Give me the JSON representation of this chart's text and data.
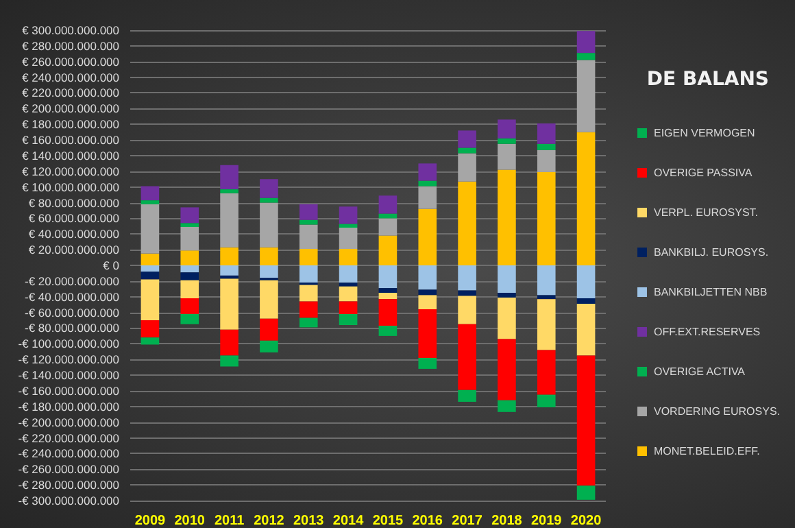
{
  "chart_data": {
    "type": "bar",
    "title": "DE BALANS",
    "stacked": true,
    "grid": "y",
    "legend": "right",
    "categories": [
      "2009",
      "2010",
      "2011",
      "2012",
      "2013",
      "2014",
      "2015",
      "2016",
      "2017",
      "2018",
      "2019",
      "2020"
    ],
    "series": [
      {
        "name": "MONET.BELEID.EFF.",
        "color": "#ffc000",
        "values": [
          15000000000,
          19000000000,
          23000000000,
          23000000000,
          21000000000,
          21000000000,
          38000000000,
          72000000000,
          107000000000,
          122000000000,
          119000000000,
          170000000000
        ]
      },
      {
        "name": "VORDERING EUROSYS.",
        "color": "#a6a6a6",
        "values": [
          63000000000,
          30000000000,
          69000000000,
          57000000000,
          31000000000,
          27000000000,
          22000000000,
          29000000000,
          36000000000,
          33000000000,
          28000000000,
          92000000000
        ]
      },
      {
        "name": "OVERIGE ACTIVA",
        "color": "#00b050",
        "values": [
          5000000000,
          5000000000,
          5000000000,
          6000000000,
          6000000000,
          5000000000,
          6000000000,
          7000000000,
          7000000000,
          7000000000,
          8000000000,
          9000000000
        ]
      },
      {
        "name": "OFF.EXT.RESERVES",
        "color": "#7030a0",
        "values": [
          18000000000,
          20000000000,
          31000000000,
          24000000000,
          20000000000,
          22000000000,
          23000000000,
          22000000000,
          22000000000,
          24000000000,
          26000000000,
          28000000000
        ]
      },
      {
        "name": "BANKBILJETTEN NBB",
        "color": "#9dc3e6",
        "values": [
          -8000000000,
          -9000000000,
          -13000000000,
          -16000000000,
          -22000000000,
          -22000000000,
          -29000000000,
          -31000000000,
          -32000000000,
          -35000000000,
          -38000000000,
          -42000000000
        ]
      },
      {
        "name": "BANKBILJ. EUROSYS.",
        "color": "#002060",
        "values": [
          -10000000000,
          -10000000000,
          -4000000000,
          -3000000000,
          -3000000000,
          -5000000000,
          -6000000000,
          -7000000000,
          -7000000000,
          -6000000000,
          -5000000000,
          -7000000000
        ]
      },
      {
        "name": "VERPL. EUROSYST.",
        "color": "#ffd966",
        "values": [
          -52000000000,
          -23000000000,
          -65000000000,
          -49000000000,
          -21000000000,
          -19000000000,
          -8000000000,
          -18000000000,
          -36000000000,
          -53000000000,
          -65000000000,
          -66000000000
        ]
      },
      {
        "name": "OVERIGE PASSIVA",
        "color": "#ff0000",
        "values": [
          -22000000000,
          -20000000000,
          -33000000000,
          -28000000000,
          -21000000000,
          -16000000000,
          -34000000000,
          -62000000000,
          -84000000000,
          -78000000000,
          -57000000000,
          -166000000000
        ]
      },
      {
        "name": "EIGEN VERMOGEN",
        "color": "#00b050",
        "values": [
          -9000000000,
          -13000000000,
          -14000000000,
          -15000000000,
          -12000000000,
          -14000000000,
          -13000000000,
          -14000000000,
          -15000000000,
          -15000000000,
          -16000000000,
          -18000000000
        ]
      }
    ],
    "ylim": [
      -300000000000,
      300000000000
    ],
    "yticks": [
      {
        "value": -300000000000,
        "label": "-€ 300.000.000.000"
      },
      {
        "value": -280000000000,
        "label": "-€ 280.000.000.000"
      },
      {
        "value": -260000000000,
        "label": "-€ 260.000.000.000"
      },
      {
        "value": -240000000000,
        "label": "-€ 240.000.000.000"
      },
      {
        "value": -220000000000,
        "label": "-€ 220.000.000.000"
      },
      {
        "value": -200000000000,
        "label": "-€ 200.000.000.000"
      },
      {
        "value": -180000000000,
        "label": "-€ 180.000.000.000"
      },
      {
        "value": -160000000000,
        "label": "-€ 160.000.000.000"
      },
      {
        "value": -140000000000,
        "label": "-€ 140.000.000.000"
      },
      {
        "value": -120000000000,
        "label": "-€ 120.000.000.000"
      },
      {
        "value": -100000000000,
        "label": "-€ 100.000.000.000"
      },
      {
        "value": -80000000000,
        "label": "-€ 80.000.000.000"
      },
      {
        "value": -60000000000,
        "label": "-€ 60.000.000.000"
      },
      {
        "value": -40000000000,
        "label": "-€ 40.000.000.000"
      },
      {
        "value": -20000000000,
        "label": "-€ 20.000.000.000"
      },
      {
        "value": 0,
        "label": "€ 0"
      },
      {
        "value": 20000000000,
        "label": "€ 20.000.000.000"
      },
      {
        "value": 40000000000,
        "label": "€ 40.000.000.000"
      },
      {
        "value": 60000000000,
        "label": "€ 60.000.000.000"
      },
      {
        "value": 80000000000,
        "label": "€ 80.000.000.000"
      },
      {
        "value": 100000000000,
        "label": "€ 100.000.000.000"
      },
      {
        "value": 120000000000,
        "label": "€ 120.000.000.000"
      },
      {
        "value": 140000000000,
        "label": "€ 140.000.000.000"
      },
      {
        "value": 160000000000,
        "label": "€ 160.000.000.000"
      },
      {
        "value": 180000000000,
        "label": "€ 180.000.000.000"
      },
      {
        "value": 200000000000,
        "label": "€ 200.000.000.000"
      },
      {
        "value": 220000000000,
        "label": "€ 220.000.000.000"
      },
      {
        "value": 240000000000,
        "label": "€ 240.000.000.000"
      },
      {
        "value": 260000000000,
        "label": "€ 260.000.000.000"
      },
      {
        "value": 280000000000,
        "label": "€ 280.000.000.000"
      },
      {
        "value": 300000000000,
        "label": "€ 300.000.000.000"
      }
    ]
  }
}
